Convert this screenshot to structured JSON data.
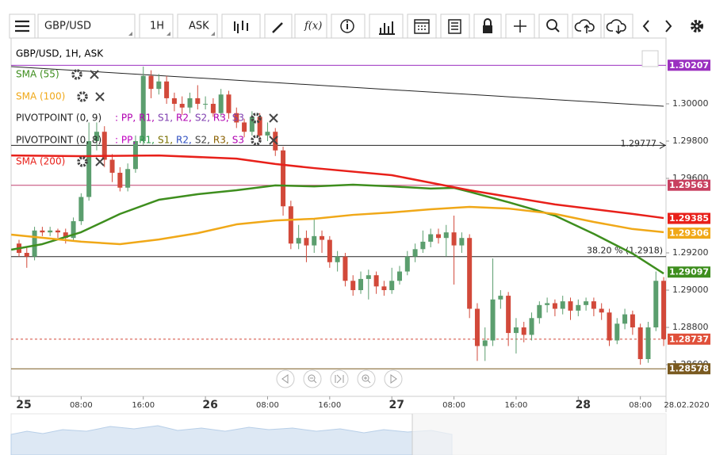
{
  "toolbar": {
    "symbol": "GBP/USD",
    "timeframe": "1H",
    "price_type": "ASK",
    "function_label": "f(x)"
  },
  "chart": {
    "type": "candlestick",
    "title": "GBP/USD, 1H, ASK",
    "xlim": [
      -1.02,
      83.3
    ],
    "ylim": [
      1.2843,
      1.30353
    ],
    "grid": false,
    "up_color": "#5b9e6e",
    "down_color": "#d2493a",
    "yticks": [
      {
        "value": 1.3,
        "label": "1.30000"
      },
      {
        "value": 1.298,
        "label": "1.29800"
      },
      {
        "value": 1.296,
        "label": "1.29600"
      },
      {
        "value": 1.292,
        "label": "1.29200"
      },
      {
        "value": 1.29,
        "label": "1.29000"
      },
      {
        "value": 1.288,
        "label": "1.28800"
      },
      {
        "value": 1.286,
        "label": "1.28600"
      }
    ],
    "xticks": [
      {
        "value": 0,
        "label": "25"
      },
      {
        "value": 8,
        "label": "08:00"
      },
      {
        "value": 16,
        "label": "16:00"
      },
      {
        "value": 24,
        "label": "26"
      },
      {
        "value": 32,
        "label": "08:00"
      },
      {
        "value": 40,
        "label": "16:00"
      },
      {
        "value": 48,
        "label": "27"
      },
      {
        "value": 56,
        "label": "08:00"
      },
      {
        "value": 64,
        "label": "16:00"
      },
      {
        "value": 72,
        "label": "28"
      },
      {
        "value": 80,
        "label": "08:00"
      }
    ],
    "date_label": "28.02.2020",
    "candles": {
      "open": [
        1.2925,
        1.292,
        1.2918,
        1.2932,
        1.2931,
        1.2932,
        1.2931,
        1.2928,
        1.2937,
        1.295,
        1.298,
        1.2985,
        1.297,
        1.2963,
        1.2955,
        1.2965,
        1.298,
        1.3015,
        1.3008,
        1.3012,
        1.3003,
        1.3,
        1.2998,
        1.3003,
        1.3,
        1.3,
        1.2995,
        1.3005,
        1.2995,
        1.299,
        1.2985,
        1.2993,
        1.2983,
        1.2985,
        1.2975,
        1.2945,
        1.2925,
        1.2928,
        1.2924,
        1.2929,
        1.2927,
        1.2915,
        1.2918,
        1.2905,
        1.29,
        1.2906,
        1.2908,
        1.2902,
        1.29,
        1.2905,
        1.291,
        1.2918,
        1.2922,
        1.2926,
        1.293,
        1.2928,
        1.2931,
        1.2924,
        1.2928,
        1.289,
        1.287,
        1.2873,
        1.2895,
        1.2897,
        1.2877,
        1.288,
        1.2876,
        1.2885,
        1.2892,
        1.2893,
        1.289,
        1.2894,
        1.2889,
        1.2892,
        1.2894,
        1.289,
        1.2888,
        1.2873,
        1.2882,
        1.2887,
        1.288,
        1.2863,
        1.288,
        1.2905
      ],
      "high": [
        1.2927,
        1.2923,
        1.2934,
        1.2934,
        1.2934,
        1.2933,
        1.2933,
        1.2939,
        1.2952,
        1.299,
        1.299,
        1.2988,
        1.2973,
        1.2966,
        1.2968,
        1.2983,
        1.302,
        1.3018,
        1.3016,
        1.3015,
        1.3006,
        1.3004,
        1.3006,
        1.301,
        1.3004,
        1.3003,
        1.3008,
        1.3007,
        1.2998,
        1.2992,
        1.2996,
        1.2995,
        1.299,
        1.2987,
        1.2977,
        1.2948,
        1.2935,
        1.2932,
        1.2938,
        1.2932,
        1.2929,
        1.2921,
        1.292,
        1.2908,
        1.291,
        1.2911,
        1.291,
        1.2905,
        1.2912,
        1.2913,
        1.2921,
        1.2925,
        1.2932,
        1.2933,
        1.2933,
        1.2935,
        1.294,
        1.2931,
        1.293,
        1.2893,
        1.288,
        1.2917,
        1.29,
        1.2899,
        1.2885,
        1.2883,
        1.2888,
        1.2894,
        1.2896,
        1.2895,
        1.2897,
        1.2896,
        1.2895,
        1.2896,
        1.2896,
        1.2893,
        1.289,
        1.2885,
        1.289,
        1.2889,
        1.2882,
        1.2883,
        1.291,
        1.2907
      ],
      "low": [
        1.2918,
        1.2912,
        1.2916,
        1.2929,
        1.2929,
        1.2928,
        1.2925,
        1.2926,
        1.2935,
        1.2948,
        1.2975,
        1.2966,
        1.2958,
        1.2953,
        1.2953,
        1.2963,
        1.2978,
        1.3003,
        1.3005,
        1.3,
        1.2996,
        1.2994,
        1.2995,
        1.2997,
        1.2997,
        1.2993,
        1.2993,
        1.2992,
        1.2987,
        1.2982,
        1.2983,
        1.298,
        1.298,
        1.2972,
        1.294,
        1.2922,
        1.2922,
        1.2915,
        1.292,
        1.292,
        1.2912,
        1.291,
        1.2902,
        1.2897,
        1.2898,
        1.2895,
        1.2898,
        1.2897,
        1.2898,
        1.2903,
        1.2908,
        1.2915,
        1.292,
        1.2923,
        1.2925,
        1.2918,
        1.2903,
        1.292,
        1.2885,
        1.2862,
        1.2862,
        1.287,
        1.289,
        1.287,
        1.2866,
        1.2872,
        1.2873,
        1.2882,
        1.2888,
        1.2886,
        1.2887,
        1.2884,
        1.2886,
        1.2889,
        1.2886,
        1.2884,
        1.287,
        1.2871,
        1.2879,
        1.2876,
        1.286,
        1.2861,
        1.2878,
        1.287
      ],
      "close": [
        1.292,
        1.2918,
        1.2932,
        1.2931,
        1.2932,
        1.2931,
        1.2928,
        1.2937,
        1.295,
        1.298,
        1.2985,
        1.297,
        1.2963,
        1.2955,
        1.2965,
        1.298,
        1.3015,
        1.3008,
        1.3012,
        1.3003,
        1.3,
        1.2998,
        1.3003,
        1.3,
        1.3,
        1.2995,
        1.3005,
        1.2995,
        1.299,
        1.2985,
        1.2993,
        1.2983,
        1.2985,
        1.2975,
        1.2945,
        1.2925,
        1.2928,
        1.2924,
        1.2929,
        1.2927,
        1.2915,
        1.2918,
        1.2905,
        1.29,
        1.2906,
        1.2908,
        1.2902,
        1.29,
        1.2905,
        1.291,
        1.2918,
        1.2922,
        1.2926,
        1.293,
        1.2928,
        1.2931,
        1.2924,
        1.2928,
        1.289,
        1.287,
        1.2873,
        1.2895,
        1.2897,
        1.2877,
        1.288,
        1.2876,
        1.2885,
        1.2892,
        1.2893,
        1.289,
        1.2894,
        1.2889,
        1.2892,
        1.2894,
        1.289,
        1.2888,
        1.2873,
        1.2882,
        1.2887,
        1.288,
        1.2863,
        1.288,
        1.2905,
        1.28737
      ]
    },
    "indicators": [
      {
        "name": "SMA (55)",
        "color": "#3e8e1e",
        "x": [
          -1,
          3,
          8,
          13,
          18,
          23,
          28,
          33,
          38,
          43,
          48,
          53,
          56,
          58,
          63,
          69,
          74,
          79,
          83
        ],
        "values": [
          1.29217,
          1.29247,
          1.29311,
          1.29409,
          1.29485,
          1.29515,
          1.29536,
          1.29562,
          1.29557,
          1.29566,
          1.29557,
          1.29545,
          1.29549,
          1.29528,
          1.29472,
          1.294,
          1.29302,
          1.29196,
          1.29089
        ]
      },
      {
        "name": "SMA (100)",
        "color": "#f0a818",
        "x": [
          -1,
          8,
          13,
          18,
          23,
          28,
          33,
          38,
          43,
          48,
          53,
          58,
          63,
          69,
          74,
          79,
          83
        ],
        "values": [
          1.29298,
          1.2926,
          1.29247,
          1.29272,
          1.29306,
          1.29353,
          1.29374,
          1.29383,
          1.29404,
          1.29417,
          1.29434,
          1.29447,
          1.29438,
          1.29409,
          1.29366,
          1.29328,
          1.29311
        ]
      },
      {
        "name": "SMA (200)",
        "color": "#e8201a",
        "x": [
          -1,
          8,
          18,
          28,
          33,
          38,
          48,
          58,
          69,
          79,
          83
        ],
        "values": [
          1.29723,
          1.29719,
          1.29723,
          1.29706,
          1.29677,
          1.29655,
          1.29617,
          1.29536,
          1.2946,
          1.29409,
          1.29387
        ]
      }
    ],
    "pivots": [
      {
        "name": "PIVOTPOINT (0, 9)",
        "labels": [
          ": PP,",
          "R1,",
          "S1,",
          "R2,",
          "S2,",
          "R3,",
          "S3"
        ],
        "colors": [
          "#b000b0",
          "#b000b0",
          "#8040b0",
          "#b000b0",
          "#8040b0",
          "#b000b0",
          "#8040b0"
        ]
      },
      {
        "name": "PIVOTPOINT (0, 8)",
        "labels": [
          ": PP,",
          "R1,",
          "S1,",
          "R2,",
          "S2,",
          "R3,",
          "S3"
        ],
        "colors": [
          "#c000c0",
          "#2a9a4a",
          "#7a7000",
          "#2f4fc0",
          "#444444",
          "#8a6000",
          "#b000b0"
        ]
      }
    ],
    "hlines": [
      {
        "value": 1.30207,
        "color": "#9b30c0"
      },
      {
        "value": 1.29563,
        "color": "#c04070"
      },
      {
        "value": 1.29777,
        "color": "#222222",
        "arrow": true
      },
      {
        "value": 1.2918,
        "color": "#222222",
        "label": "38.20 % (1.2918)"
      },
      {
        "value": 1.28737,
        "color": "#d2493a",
        "dashed": true
      },
      {
        "value": 1.28578,
        "color": "#7a5a20"
      }
    ],
    "trendline": {
      "x": [
        -1,
        83
      ],
      "values": [
        1.302,
        1.29987
      ],
      "color": "#222222"
    },
    "price_tags": [
      {
        "value": 1.30207,
        "color": "#9b30c0"
      },
      {
        "value": 1.29563,
        "color": "#c84060"
      },
      {
        "value": 1.29385,
        "color": "#e8201a"
      },
      {
        "value": 1.29306,
        "color": "#f0a818"
      },
      {
        "value": 1.29097,
        "color": "#3e8e1e"
      },
      {
        "value": 1.28737,
        "color": "#e0503a"
      },
      {
        "value": 1.28578,
        "color": "#7a5a20"
      }
    ]
  }
}
